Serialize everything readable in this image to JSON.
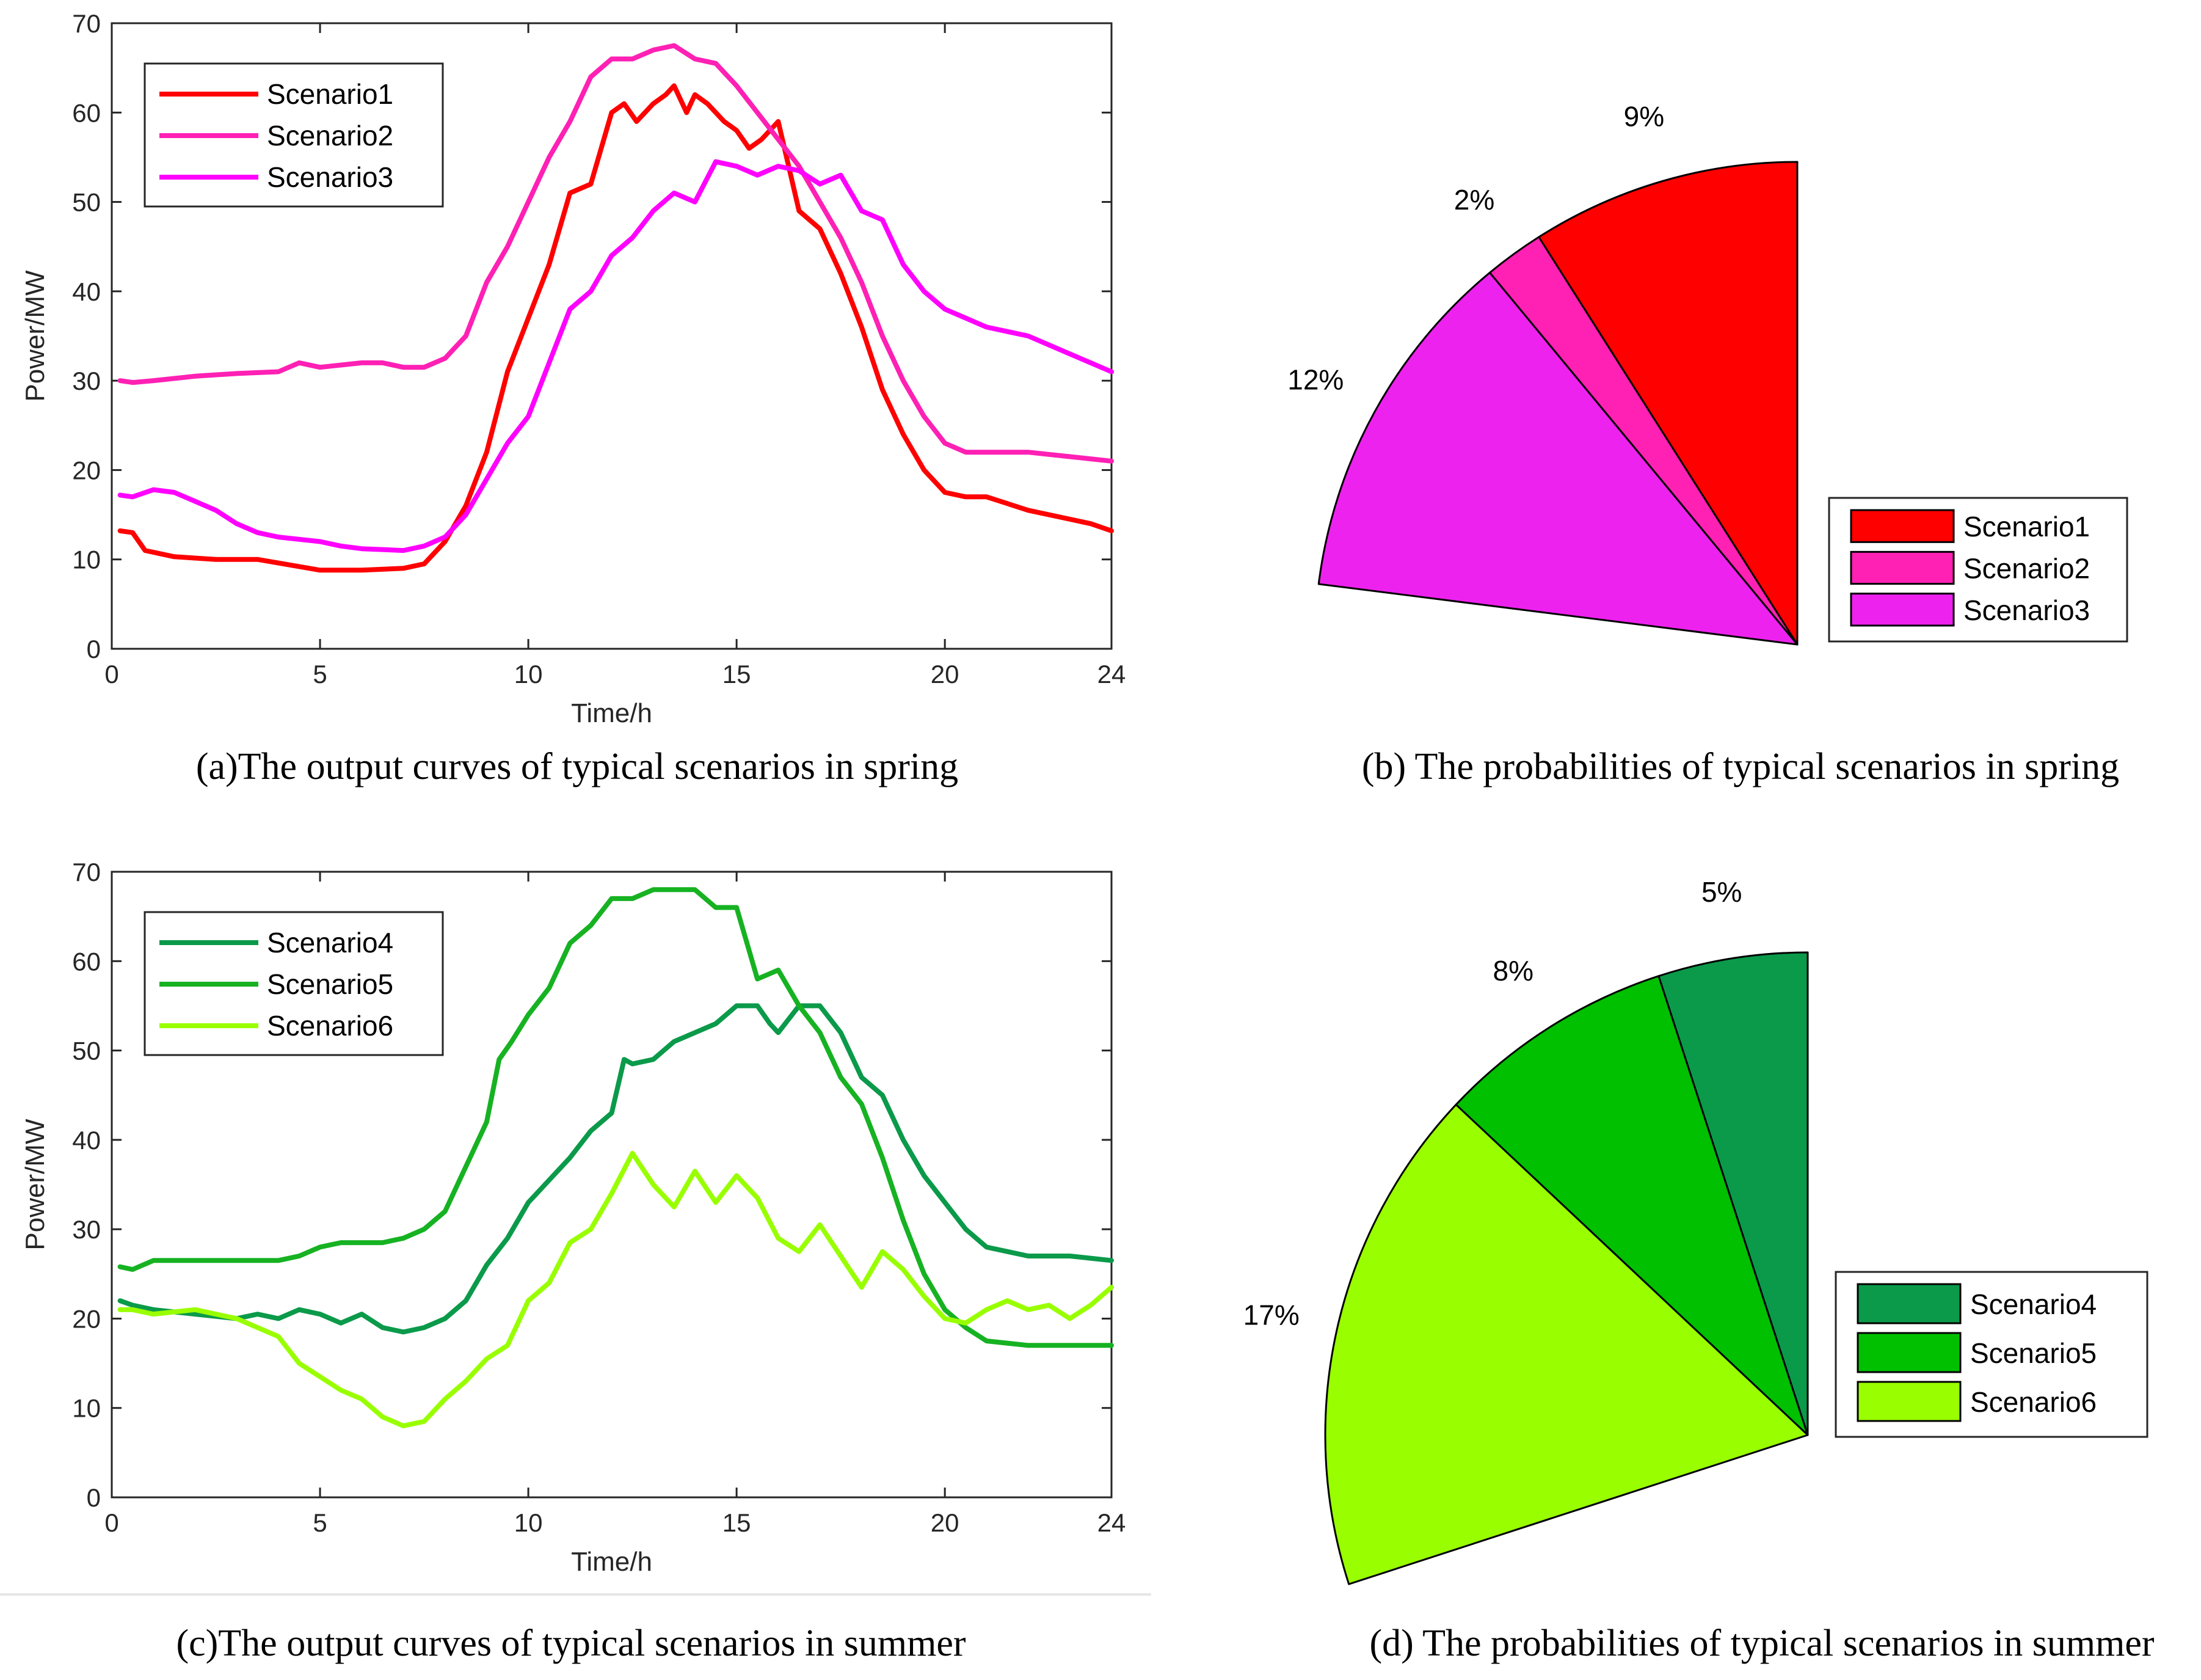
{
  "captions": {
    "a": "(a)The output curves of typical scenarios in spring",
    "b": "(b) The probabilities of typical scenarios in spring",
    "c": "(c)The output curves of typical scenarios in summer",
    "d": "(d) The probabilities of typical scenarios in summer"
  },
  "chart_data": [
    {
      "id": "a",
      "type": "line",
      "xlabel": "Time/h",
      "ylabel": "Power/MW",
      "xlim": [
        0,
        24
      ],
      "ylim": [
        0,
        70
      ],
      "xticks": [
        0,
        5,
        10,
        15,
        20,
        24
      ],
      "yticks": [
        0,
        10,
        20,
        30,
        40,
        50,
        60,
        70
      ],
      "legend_position": "top-left",
      "series": [
        {
          "name": "Scenario1",
          "color": "#ff0000",
          "x": [
            0.2,
            0.5,
            0.8,
            1.5,
            2.5,
            3.5,
            4.5,
            5,
            6,
            7,
            7.5,
            8,
            8.5,
            9,
            9.5,
            10,
            10.5,
            11,
            11.5,
            12,
            12.3,
            12.6,
            13,
            13.3,
            13.5,
            13.8,
            14,
            14.3,
            14.7,
            15,
            15.3,
            15.6,
            16,
            16.5,
            17,
            17.5,
            18,
            18.5,
            19,
            19.5,
            20,
            20.5,
            21,
            22,
            23,
            23.5,
            24
          ],
          "y": [
            13.2,
            13,
            11,
            10.3,
            10,
            10,
            9.2,
            8.8,
            8.8,
            9,
            9.5,
            12,
            16,
            22,
            31,
            37,
            43,
            51,
            52,
            60,
            61,
            59,
            61,
            62,
            63,
            60,
            62,
            61,
            59,
            58,
            56,
            57,
            59,
            49,
            47,
            42,
            36,
            29,
            24,
            20,
            17.5,
            17,
            17,
            15.5,
            14.5,
            14,
            13.2
          ]
        },
        {
          "name": "Scenario2",
          "color": "#ff20b4",
          "x": [
            0.2,
            0.5,
            1,
            2,
            3,
            4,
            4.5,
            5,
            6,
            6.5,
            7,
            7.5,
            8,
            8.5,
            9,
            9.5,
            10,
            10.5,
            11,
            11.5,
            12,
            12.5,
            13,
            13.5,
            14,
            14.5,
            15,
            15.5,
            16,
            16.5,
            17,
            17.5,
            18,
            18.5,
            19,
            19.5,
            20,
            20.5,
            21,
            22,
            23,
            24
          ],
          "y": [
            30,
            29.8,
            30,
            30.5,
            30.8,
            31,
            32,
            31.5,
            32,
            32,
            31.5,
            31.5,
            32.5,
            35,
            41,
            45,
            50,
            55,
            59,
            64,
            66,
            66,
            67,
            67.5,
            66,
            65.5,
            63,
            60,
            57,
            54,
            50,
            46,
            41,
            35,
            30,
            26,
            23,
            22,
            22,
            22,
            21.5,
            21
          ]
        },
        {
          "name": "Scenario3",
          "color": "#ff00ff",
          "x": [
            0.2,
            0.5,
            1,
            1.5,
            2,
            2.5,
            3,
            3.5,
            4,
            5,
            5.5,
            6,
            7,
            7.5,
            8,
            8.5,
            9,
            9.5,
            10,
            10.5,
            11,
            11.5,
            12,
            12.5,
            13,
            13.5,
            14,
            14.5,
            15,
            15.5,
            16,
            16.5,
            17,
            17.5,
            18,
            18.5,
            19,
            19.5,
            20,
            20.5,
            21,
            22,
            23,
            24
          ],
          "y": [
            17.2,
            17,
            17.8,
            17.5,
            16.5,
            15.5,
            14,
            13,
            12.5,
            12,
            11.5,
            11.2,
            11,
            11.5,
            12.5,
            15,
            19,
            23,
            26,
            32,
            38,
            40,
            44,
            46,
            49,
            51,
            50,
            54.5,
            54,
            53,
            54,
            53.5,
            52,
            53,
            49,
            48,
            43,
            40,
            38,
            37,
            36,
            35,
            33,
            31
          ]
        }
      ]
    },
    {
      "id": "b",
      "type": "pie",
      "slices": [
        {
          "name": "Scenario1",
          "label": "9%",
          "value": 9,
          "color": "#ff0000"
        },
        {
          "name": "Scenario2",
          "label": "2%",
          "value": 2,
          "color": "#ff20b4"
        },
        {
          "name": "Scenario3",
          "label": "12%",
          "value": 12,
          "color": "#ee22ee"
        }
      ],
      "legend_position": "right"
    },
    {
      "id": "c",
      "type": "line",
      "xlabel": "Time/h",
      "ylabel": "Power/MW",
      "xlim": [
        0,
        24
      ],
      "ylim": [
        0,
        70
      ],
      "xticks": [
        0,
        5,
        10,
        15,
        20,
        24
      ],
      "yticks": [
        0,
        10,
        20,
        30,
        40,
        50,
        60,
        70
      ],
      "legend_position": "top-left",
      "series": [
        {
          "name": "Scenario4",
          "color": "#0a9a4a",
          "x": [
            0.2,
            0.5,
            1,
            2,
            3,
            3.5,
            4,
            4.5,
            5,
            5.5,
            6,
            6.5,
            7,
            7.5,
            8,
            8.5,
            9,
            9.5,
            10,
            10.5,
            11,
            11.5,
            12,
            12.3,
            12.5,
            13,
            13.5,
            14,
            14.5,
            15,
            15.5,
            15.8,
            16,
            16.5,
            17,
            17.5,
            18,
            18.5,
            19,
            19.5,
            20,
            20.5,
            21,
            22,
            23,
            24
          ],
          "y": [
            22,
            21.5,
            21,
            20.5,
            20,
            20.5,
            20,
            21,
            20.5,
            19.5,
            20.5,
            19,
            18.5,
            19,
            20,
            22,
            26,
            29,
            33,
            35.5,
            38,
            41,
            43,
            49,
            48.5,
            49,
            51,
            52,
            53,
            55,
            55,
            53,
            52,
            55,
            55,
            52,
            47,
            45,
            40,
            36,
            33,
            30,
            28,
            27,
            27,
            26.5
          ]
        },
        {
          "name": "Scenario5",
          "color": "#16b222",
          "x": [
            0.2,
            0.5,
            1,
            2,
            3,
            4,
            4.5,
            5,
            5.5,
            6,
            6.5,
            7,
            7.5,
            8,
            8.5,
            9,
            9.3,
            9.6,
            10,
            10.5,
            11,
            11.5,
            12,
            12.5,
            13,
            13.5,
            14,
            14.5,
            15,
            15.5,
            16,
            16.5,
            17,
            17.5,
            18,
            18.5,
            19,
            19.5,
            20,
            20.5,
            21,
            22,
            23,
            24
          ],
          "y": [
            25.8,
            25.5,
            26.5,
            26.5,
            26.5,
            26.5,
            27,
            28,
            28.5,
            28.5,
            28.5,
            29,
            30,
            32,
            37,
            42,
            49,
            51,
            54,
            57,
            62,
            64,
            67,
            67,
            68,
            68,
            68,
            66,
            66,
            58,
            59,
            55,
            52,
            47,
            44,
            38,
            31,
            25,
            21,
            19,
            17.5,
            17,
            17,
            17
          ]
        },
        {
          "name": "Scenario6",
          "color": "#99ff00",
          "x": [
            0.2,
            0.5,
            1,
            2,
            3,
            3.5,
            4,
            4.5,
            5,
            5.5,
            6,
            6.5,
            7,
            7.5,
            8,
            8.5,
            9,
            9.5,
            10,
            10.5,
            11,
            11.5,
            12,
            12.5,
            13,
            13.5,
            14,
            14.5,
            15,
            15.5,
            16,
            16.5,
            17,
            17.5,
            18,
            18.5,
            19,
            19.5,
            20,
            20.5,
            21,
            21.5,
            22,
            22.5,
            23,
            23.5,
            24
          ],
          "y": [
            21,
            21,
            20.5,
            21,
            20,
            19,
            18,
            15,
            13.5,
            12,
            11,
            9,
            8,
            8.5,
            11,
            13,
            15.5,
            17,
            22,
            24,
            28.5,
            30,
            34,
            38.5,
            35,
            32.5,
            36.5,
            33,
            36,
            33.5,
            29,
            27.5,
            30.5,
            27,
            23.5,
            27.5,
            25.5,
            22.5,
            20,
            19.5,
            21,
            22,
            21,
            21.5,
            20,
            21.5,
            23.5
          ]
        }
      ]
    },
    {
      "id": "d",
      "type": "pie",
      "slices": [
        {
          "name": "Scenario4",
          "label": "5%",
          "value": 5,
          "color": "#0a9a4a"
        },
        {
          "name": "Scenario5",
          "label": "8%",
          "value": 8,
          "color": "#00c000"
        },
        {
          "name": "Scenario6",
          "label": "17%",
          "value": 17,
          "color": "#99ff00"
        }
      ],
      "legend_position": "right"
    }
  ]
}
